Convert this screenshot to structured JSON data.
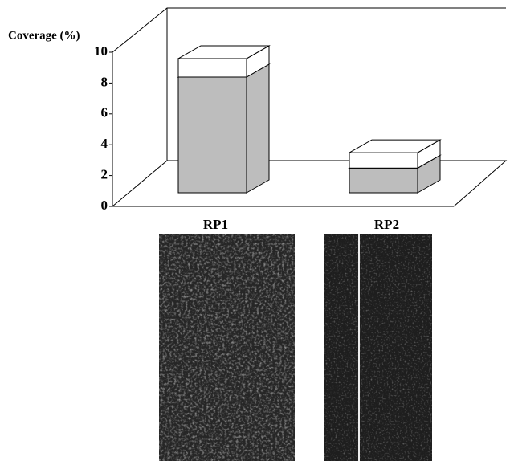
{
  "chart_data": {
    "type": "bar",
    "stacked": true,
    "three_d": true,
    "y_label": "Coverage (%)",
    "categories": [
      "RP1",
      "RP2"
    ],
    "series": [
      {
        "color": "#bdbdbd",
        "values": [
          7.5,
          1.6
        ]
      },
      {
        "color": "#ffffff",
        "values": [
          1.2,
          1.0
        ]
      }
    ],
    "ylim": [
      0,
      10
    ],
    "yticks": [
      0,
      2,
      4,
      6,
      8,
      10
    ]
  }
}
